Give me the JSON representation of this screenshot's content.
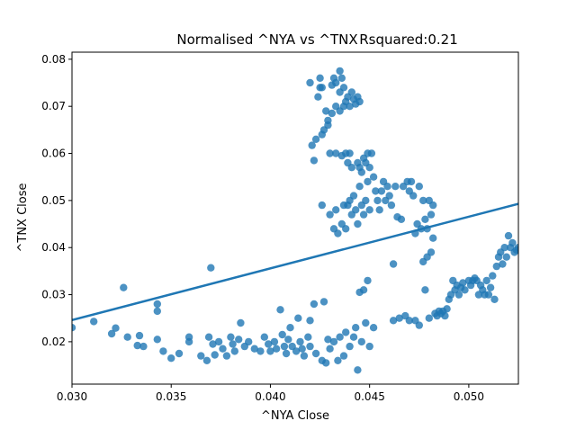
{
  "chart_data": {
    "type": "scatter",
    "title": "Normalised ^NYA vs ^TNX",
    "subtitle": "Rsquared:0.21",
    "xlabel": "^NYA Close",
    "ylabel": "^TNX Close",
    "xlim": [
      0.03,
      0.0525
    ],
    "ylim": [
      0.011,
      0.0815
    ],
    "xticks": [
      0.03,
      0.035,
      0.04,
      0.045,
      0.05
    ],
    "xtick_labels": [
      "0.030",
      "0.035",
      "0.040",
      "0.045",
      "0.050"
    ],
    "yticks": [
      0.02,
      0.03,
      0.04,
      0.05,
      0.06,
      0.07,
      0.08
    ],
    "ytick_labels": [
      "0.02",
      "0.03",
      "0.04",
      "0.05",
      "0.06",
      "0.07",
      "0.08"
    ],
    "grid": false,
    "point_color": "#1f77b4",
    "point_alpha": 0.8,
    "regression_line": {
      "x": [
        0.03,
        0.0525
      ],
      "y": [
        0.0246,
        0.0493
      ],
      "color": "#1f77b4"
    },
    "points": [
      [
        0.03,
        0.023
      ],
      [
        0.0311,
        0.0243
      ],
      [
        0.032,
        0.0217
      ],
      [
        0.0322,
        0.0229
      ],
      [
        0.0326,
        0.0315
      ],
      [
        0.0328,
        0.021
      ],
      [
        0.0333,
        0.0192
      ],
      [
        0.0334,
        0.0213
      ],
      [
        0.0336,
        0.019
      ],
      [
        0.0343,
        0.028
      ],
      [
        0.0343,
        0.0265
      ],
      [
        0.0343,
        0.0205
      ],
      [
        0.0346,
        0.018
      ],
      [
        0.035,
        0.0165
      ],
      [
        0.0354,
        0.0175
      ],
      [
        0.0359,
        0.021
      ],
      [
        0.0359,
        0.02
      ],
      [
        0.0365,
        0.017
      ],
      [
        0.0368,
        0.016
      ],
      [
        0.0369,
        0.021
      ],
      [
        0.037,
        0.0357
      ],
      [
        0.0371,
        0.0195
      ],
      [
        0.0372,
        0.0172
      ],
      [
        0.0374,
        0.02
      ],
      [
        0.0376,
        0.0185
      ],
      [
        0.0378,
        0.017
      ],
      [
        0.038,
        0.021
      ],
      [
        0.0381,
        0.0195
      ],
      [
        0.0382,
        0.018
      ],
      [
        0.0384,
        0.0205
      ],
      [
        0.0385,
        0.024
      ],
      [
        0.0387,
        0.019
      ],
      [
        0.0389,
        0.02
      ],
      [
        0.0392,
        0.0185
      ],
      [
        0.0395,
        0.018
      ],
      [
        0.0397,
        0.021
      ],
      [
        0.0399,
        0.0195
      ],
      [
        0.04,
        0.018
      ],
      [
        0.0402,
        0.02
      ],
      [
        0.0403,
        0.0185
      ],
      [
        0.0405,
        0.0268
      ],
      [
        0.0406,
        0.0215
      ],
      [
        0.0407,
        0.019
      ],
      [
        0.0408,
        0.0175
      ],
      [
        0.0409,
        0.0205
      ],
      [
        0.041,
        0.023
      ],
      [
        0.0411,
        0.019
      ],
      [
        0.0413,
        0.018
      ],
      [
        0.0414,
        0.025
      ],
      [
        0.0415,
        0.02
      ],
      [
        0.0416,
        0.0185
      ],
      [
        0.0417,
        0.017
      ],
      [
        0.0419,
        0.021
      ],
      [
        0.042,
        0.019
      ],
      [
        0.042,
        0.075
      ],
      [
        0.042,
        0.0245
      ],
      [
        0.0421,
        0.0617
      ],
      [
        0.0422,
        0.0585
      ],
      [
        0.0422,
        0.028
      ],
      [
        0.0423,
        0.0175
      ],
      [
        0.0423,
        0.063
      ],
      [
        0.0424,
        0.072
      ],
      [
        0.0425,
        0.074
      ],
      [
        0.0425,
        0.076
      ],
      [
        0.0426,
        0.074
      ],
      [
        0.0426,
        0.064
      ],
      [
        0.0426,
        0.049
      ],
      [
        0.0426,
        0.016
      ],
      [
        0.0427,
        0.065
      ],
      [
        0.0427,
        0.0285
      ],
      [
        0.0428,
        0.0155
      ],
      [
        0.0428,
        0.069
      ],
      [
        0.0429,
        0.067
      ],
      [
        0.0429,
        0.066
      ],
      [
        0.0429,
        0.0205
      ],
      [
        0.043,
        0.06
      ],
      [
        0.043,
        0.047
      ],
      [
        0.043,
        0.0185
      ],
      [
        0.0431,
        0.0745
      ],
      [
        0.0431,
        0.0685
      ],
      [
        0.0432,
        0.076
      ],
      [
        0.0432,
        0.044
      ],
      [
        0.0432,
        0.02
      ],
      [
        0.0433,
        0.075
      ],
      [
        0.0433,
        0.07
      ],
      [
        0.0433,
        0.06
      ],
      [
        0.0433,
        0.048
      ],
      [
        0.0434,
        0.043
      ],
      [
        0.0434,
        0.016
      ],
      [
        0.0435,
        0.0775
      ],
      [
        0.0435,
        0.073
      ],
      [
        0.0435,
        0.069
      ],
      [
        0.0435,
        0.021
      ],
      [
        0.0436,
        0.076
      ],
      [
        0.0436,
        0.0595
      ],
      [
        0.0436,
        0.045
      ],
      [
        0.0437,
        0.074
      ],
      [
        0.0437,
        0.07
      ],
      [
        0.0437,
        0.049
      ],
      [
        0.0437,
        0.017
      ],
      [
        0.0438,
        0.071
      ],
      [
        0.0438,
        0.06
      ],
      [
        0.0438,
        0.044
      ],
      [
        0.0438,
        0.022
      ],
      [
        0.0439,
        0.072
      ],
      [
        0.0439,
        0.058
      ],
      [
        0.0439,
        0.049
      ],
      [
        0.044,
        0.07
      ],
      [
        0.044,
        0.06
      ],
      [
        0.044,
        0.05
      ],
      [
        0.044,
        0.019
      ],
      [
        0.0441,
        0.073
      ],
      [
        0.0441,
        0.057
      ],
      [
        0.0441,
        0.047
      ],
      [
        0.0442,
        0.0715
      ],
      [
        0.0442,
        0.051
      ],
      [
        0.0442,
        0.021
      ],
      [
        0.0443,
        0.0705
      ],
      [
        0.0443,
        0.048
      ],
      [
        0.0443,
        0.023
      ],
      [
        0.0444,
        0.072
      ],
      [
        0.0444,
        0.058
      ],
      [
        0.0444,
        0.045
      ],
      [
        0.0444,
        0.014
      ],
      [
        0.0445,
        0.071
      ],
      [
        0.0445,
        0.057
      ],
      [
        0.0445,
        0.053
      ],
      [
        0.0445,
        0.0305
      ],
      [
        0.0446,
        0.056
      ],
      [
        0.0446,
        0.049
      ],
      [
        0.0446,
        0.02
      ],
      [
        0.0447,
        0.059
      ],
      [
        0.0447,
        0.047
      ],
      [
        0.0447,
        0.031
      ],
      [
        0.0448,
        0.058
      ],
      [
        0.0448,
        0.05
      ],
      [
        0.0448,
        0.024
      ],
      [
        0.0449,
        0.06
      ],
      [
        0.0449,
        0.054
      ],
      [
        0.0449,
        0.033
      ],
      [
        0.045,
        0.057
      ],
      [
        0.045,
        0.048
      ],
      [
        0.045,
        0.019
      ],
      [
        0.0451,
        0.06
      ],
      [
        0.0452,
        0.055
      ],
      [
        0.0452,
        0.023
      ],
      [
        0.0453,
        0.052
      ],
      [
        0.0454,
        0.05
      ],
      [
        0.0455,
        0.048
      ],
      [
        0.0456,
        0.052
      ],
      [
        0.0457,
        0.054
      ],
      [
        0.0458,
        0.05
      ],
      [
        0.0459,
        0.053
      ],
      [
        0.046,
        0.051
      ],
      [
        0.0461,
        0.049
      ],
      [
        0.0462,
        0.0365
      ],
      [
        0.0462,
        0.0245
      ],
      [
        0.0463,
        0.053
      ],
      [
        0.0464,
        0.0465
      ],
      [
        0.0465,
        0.025
      ],
      [
        0.0466,
        0.046
      ],
      [
        0.0467,
        0.053
      ],
      [
        0.0468,
        0.0255
      ],
      [
        0.0469,
        0.054
      ],
      [
        0.047,
        0.052
      ],
      [
        0.047,
        0.0245
      ],
      [
        0.0471,
        0.054
      ],
      [
        0.0472,
        0.051
      ],
      [
        0.0473,
        0.043
      ],
      [
        0.0473,
        0.0245
      ],
      [
        0.0474,
        0.045
      ],
      [
        0.0475,
        0.053
      ],
      [
        0.0475,
        0.0235
      ],
      [
        0.0476,
        0.044
      ],
      [
        0.0477,
        0.05
      ],
      [
        0.0477,
        0.037
      ],
      [
        0.0478,
        0.046
      ],
      [
        0.0478,
        0.031
      ],
      [
        0.0479,
        0.044
      ],
      [
        0.0479,
        0.038
      ],
      [
        0.048,
        0.05
      ],
      [
        0.048,
        0.025
      ],
      [
        0.0481,
        0.047
      ],
      [
        0.0481,
        0.039
      ],
      [
        0.0482,
        0.049
      ],
      [
        0.0482,
        0.042
      ],
      [
        0.0483,
        0.026
      ],
      [
        0.0484,
        0.0255
      ],
      [
        0.0485,
        0.0265
      ],
      [
        0.0486,
        0.026
      ],
      [
        0.0487,
        0.0265
      ],
      [
        0.0488,
        0.0255
      ],
      [
        0.0489,
        0.027
      ],
      [
        0.049,
        0.029
      ],
      [
        0.0491,
        0.03
      ],
      [
        0.0492,
        0.033
      ],
      [
        0.0493,
        0.031
      ],
      [
        0.0494,
        0.032
      ],
      [
        0.0495,
        0.03
      ],
      [
        0.0496,
        0.0315
      ],
      [
        0.0497,
        0.0325
      ],
      [
        0.0498,
        0.031
      ],
      [
        0.05,
        0.033
      ],
      [
        0.0501,
        0.032
      ],
      [
        0.0502,
        0.033
      ],
      [
        0.0503,
        0.0335
      ],
      [
        0.0504,
        0.033
      ],
      [
        0.0505,
        0.03
      ],
      [
        0.0506,
        0.032
      ],
      [
        0.0507,
        0.031
      ],
      [
        0.0508,
        0.03
      ],
      [
        0.0509,
        0.033
      ],
      [
        0.051,
        0.03
      ],
      [
        0.0511,
        0.0315
      ],
      [
        0.0512,
        0.034
      ],
      [
        0.0513,
        0.029
      ],
      [
        0.0514,
        0.036
      ],
      [
        0.0515,
        0.038
      ],
      [
        0.0516,
        0.039
      ],
      [
        0.0517,
        0.0365
      ],
      [
        0.0518,
        0.04
      ],
      [
        0.0519,
        0.038
      ],
      [
        0.052,
        0.0425
      ],
      [
        0.0521,
        0.04
      ],
      [
        0.0522,
        0.041
      ],
      [
        0.0523,
        0.039
      ],
      [
        0.0524,
        0.0395
      ],
      [
        0.0525,
        0.04
      ]
    ]
  }
}
